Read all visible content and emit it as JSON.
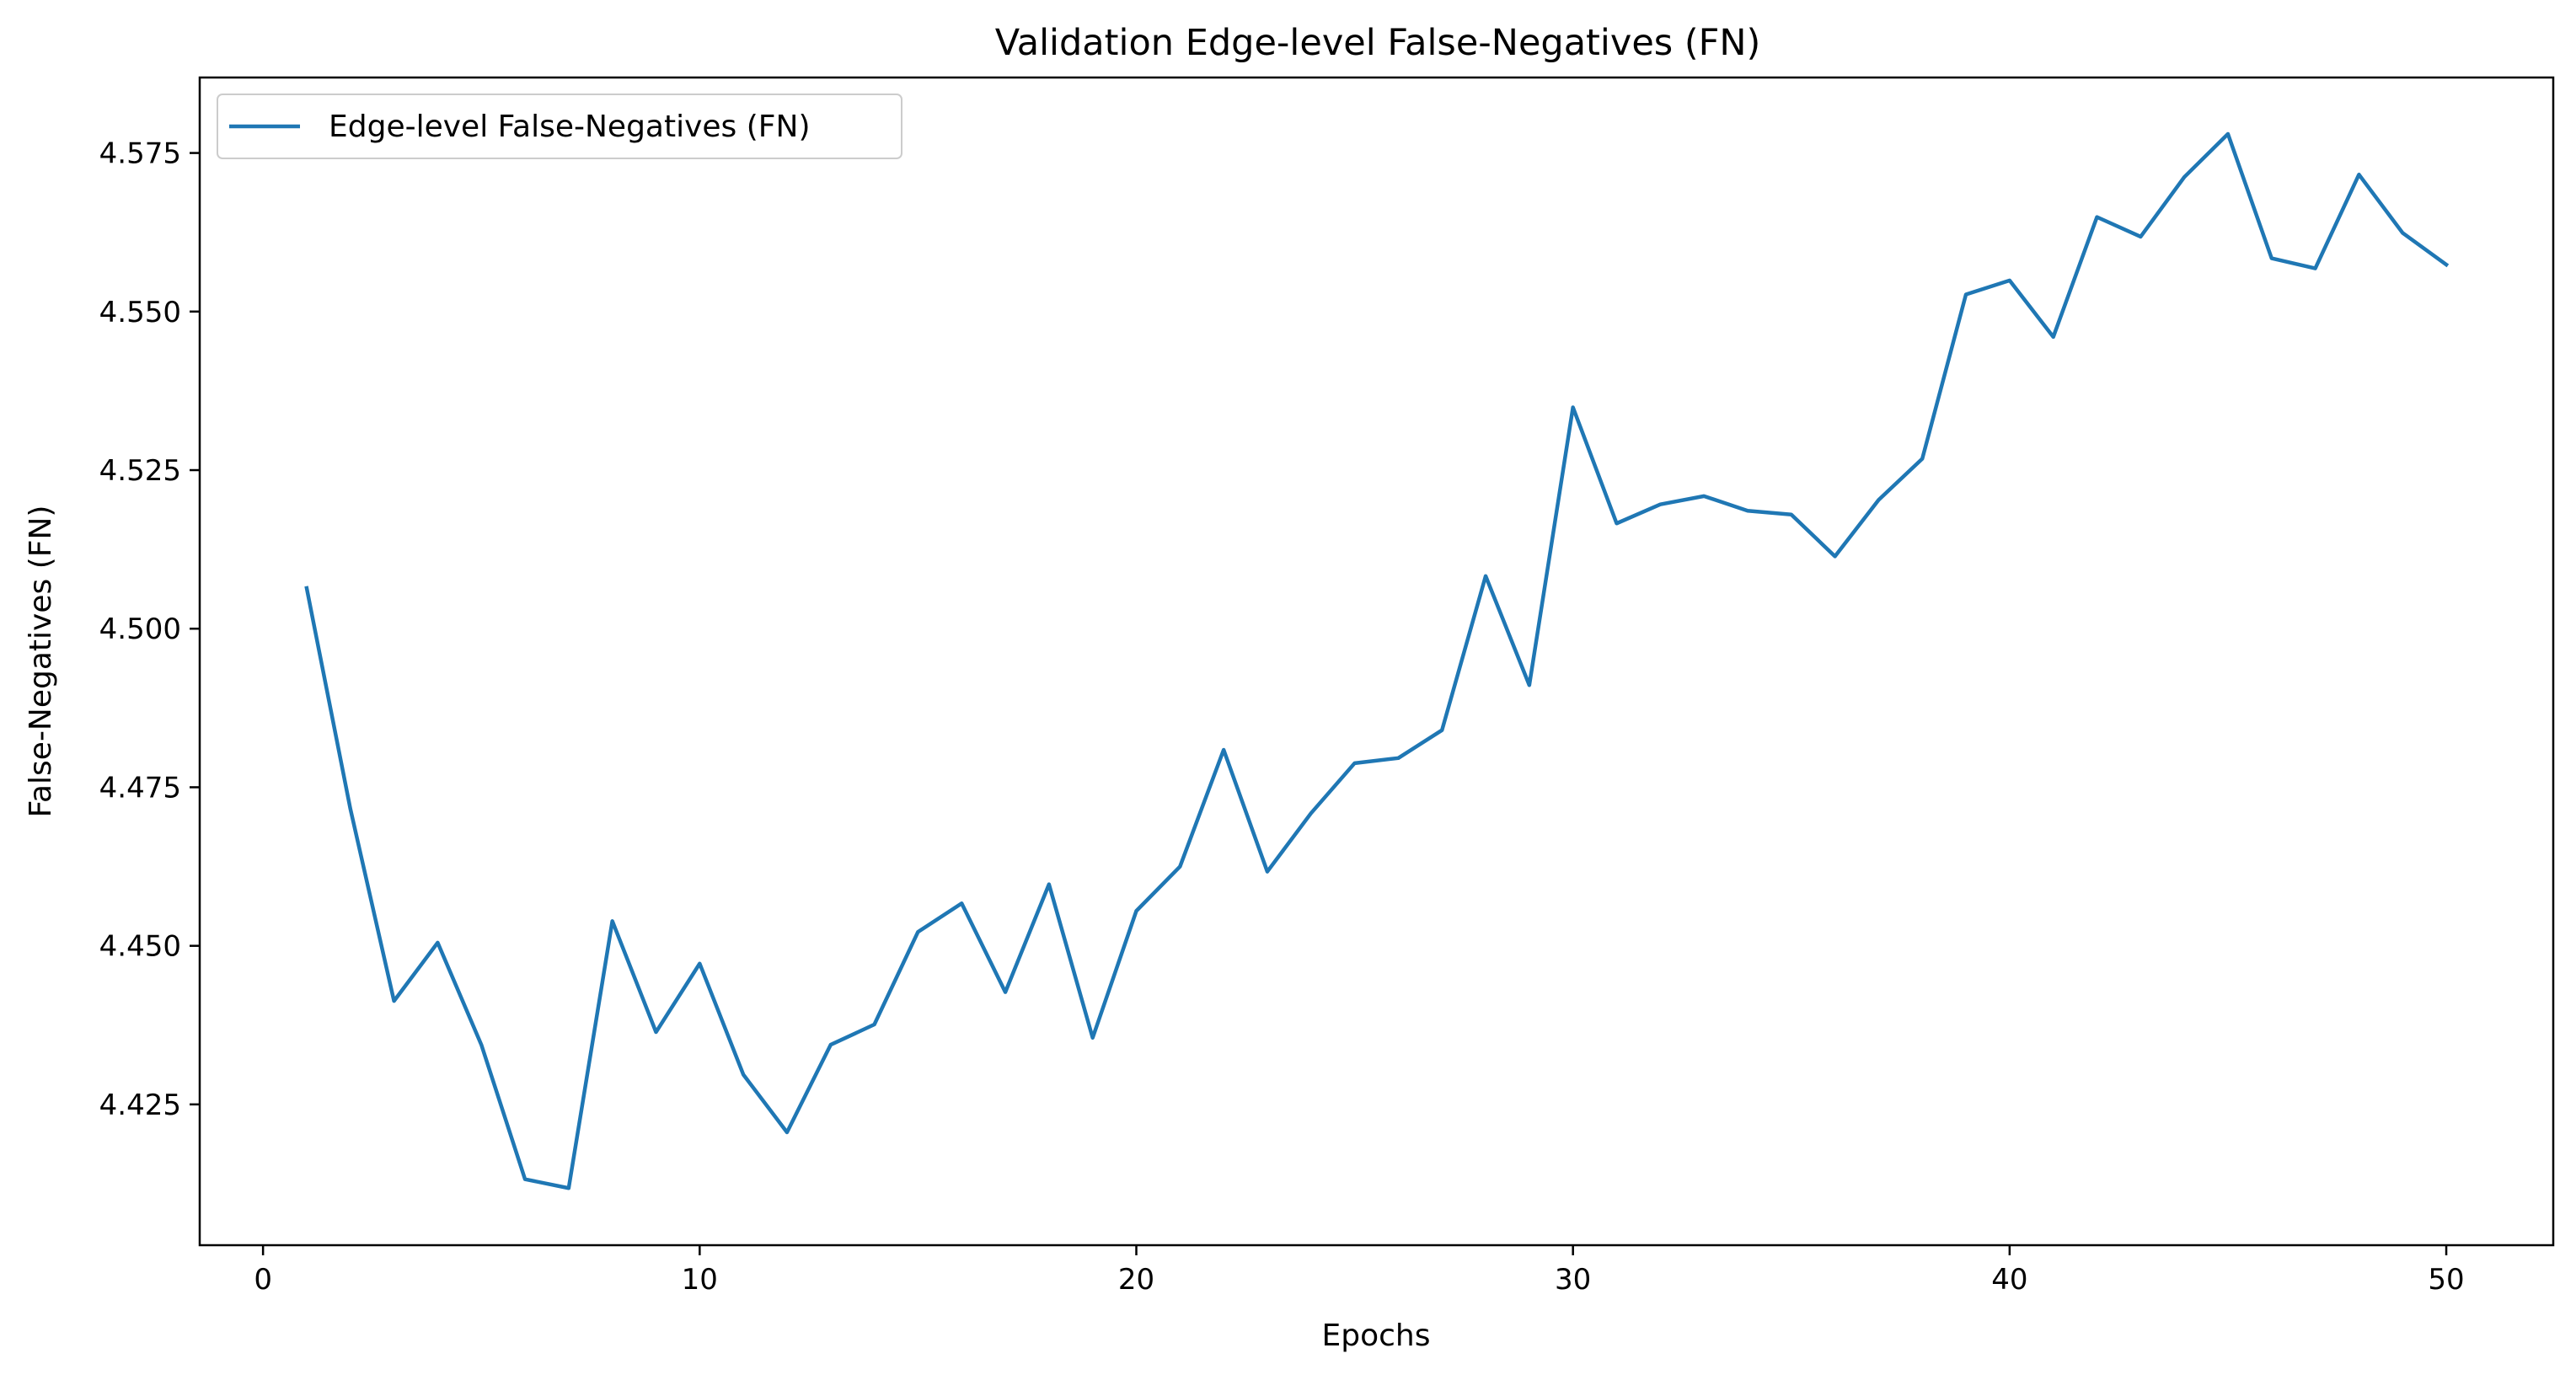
{
  "chart_data": {
    "type": "line",
    "title": "Validation Edge-level False-Negatives (FN)",
    "xlabel": "Epochs",
    "ylabel": "False-Negatives (FN)",
    "xlim": [
      -1.45,
      52.45
    ],
    "ylim": [
      4.4028,
      4.5869
    ],
    "xticks": [
      0,
      10,
      20,
      30,
      40,
      50
    ],
    "yticks": [
      4.425,
      4.45,
      4.475,
      4.5,
      4.525,
      4.55,
      4.575
    ],
    "ytick_labels": [
      "4.425",
      "4.450",
      "4.475",
      "4.500",
      "4.525",
      "4.550",
      "4.575"
    ],
    "grid": false,
    "legend_position": "top-left",
    "series": [
      {
        "name": "Edge-level False-Negatives (FN)",
        "color": "#1f77b4",
        "x": [
          1,
          2,
          3,
          4,
          5,
          6,
          7,
          8,
          9,
          10,
          11,
          12,
          13,
          14,
          15,
          16,
          17,
          18,
          19,
          20,
          21,
          22,
          23,
          24,
          25,
          26,
          27,
          28,
          29,
          30,
          31,
          32,
          33,
          34,
          35,
          36,
          37,
          38,
          39,
          40,
          41,
          42,
          43,
          44,
          45,
          46,
          47,
          48,
          49,
          50
        ],
        "values": [
          4.5064,
          4.4716,
          4.4413,
          4.4505,
          4.4344,
          4.4132,
          4.4118,
          4.4539,
          4.4364,
          4.4472,
          4.4297,
          4.4206,
          4.4344,
          4.4376,
          4.4522,
          4.4567,
          4.4427,
          4.4597,
          4.4355,
          4.4555,
          4.4625,
          4.4809,
          4.4617,
          4.4709,
          4.4788,
          4.4796,
          4.484,
          4.5083,
          4.4911,
          4.5349,
          4.5166,
          4.5196,
          4.5209,
          4.5186,
          4.518,
          4.5114,
          4.5203,
          4.5268,
          4.5527,
          4.5549,
          4.546,
          4.5649,
          4.5618,
          4.5712,
          4.578,
          4.5584,
          4.5568,
          4.5716,
          4.5624,
          4.5574
        ]
      }
    ]
  }
}
